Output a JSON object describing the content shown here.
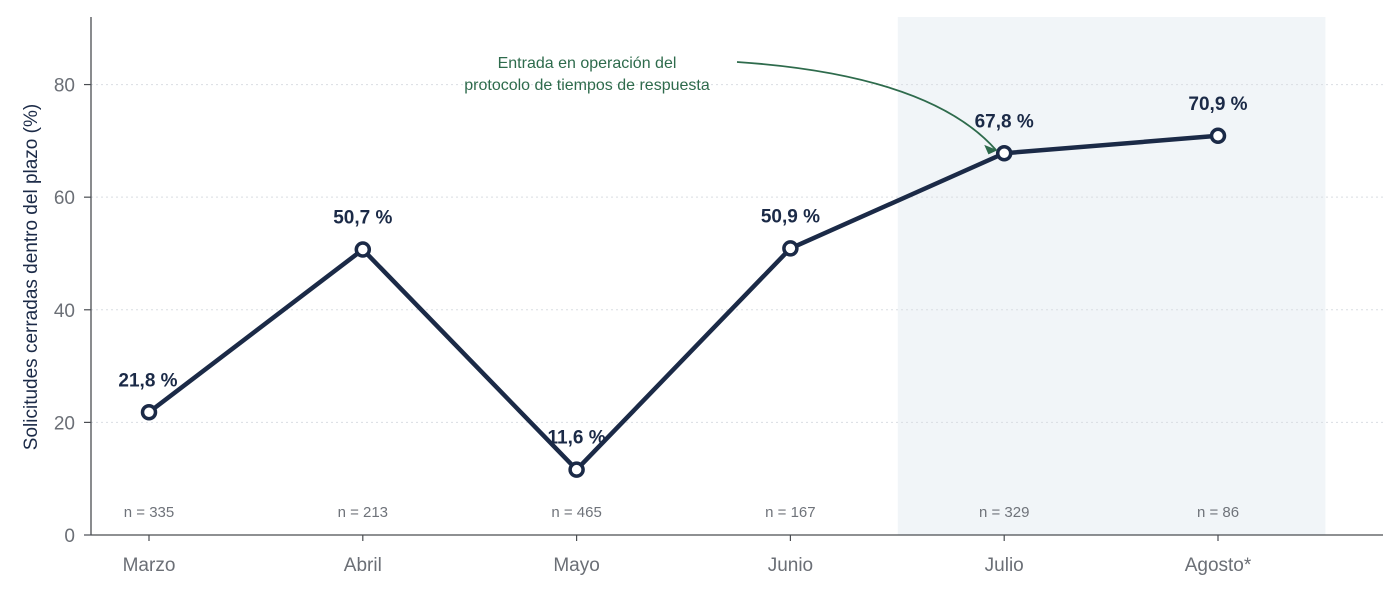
{
  "chart_data": {
    "type": "line",
    "categories": [
      "Marzo",
      "Abril",
      "Mayo",
      "Junio",
      "Julio",
      "Agosto*"
    ],
    "values": [
      21.8,
      50.7,
      11.6,
      50.9,
      67.8,
      70.9
    ],
    "value_labels": [
      "21,8 %",
      "50,7 %",
      "11,6 %",
      "50,9 %",
      "67,8 %",
      "70,9 %"
    ],
    "n_labels": [
      "n = 335",
      "n = 213",
      "n = 465",
      "n = 167",
      "n = 329",
      "n = 86"
    ],
    "ylabel": "Solicitudes cerradas dentro del plazo (%)",
    "xlabel": "",
    "ylim": [
      0,
      92
    ],
    "yticks": [
      0,
      20,
      40,
      60,
      80
    ],
    "ytick_labels": [
      "0",
      "20",
      "40",
      "60",
      "80"
    ],
    "grid": "horizontal dotted",
    "highlight_categories": [
      "Julio",
      "Agosto*"
    ],
    "annotation": {
      "lines": [
        "Entrada en operación del",
        "protocolo de tiempos de respuesta"
      ],
      "target_category": "Julio"
    },
    "colors": {
      "line": "#1b2a47",
      "marker_fill": "#ffffff",
      "highlight_band": "#f1f5f8",
      "annotation": "#2e6b4c",
      "axis": "#4a4d52",
      "grid": "#d9dde2",
      "tick_text": "#6b6f76"
    }
  }
}
